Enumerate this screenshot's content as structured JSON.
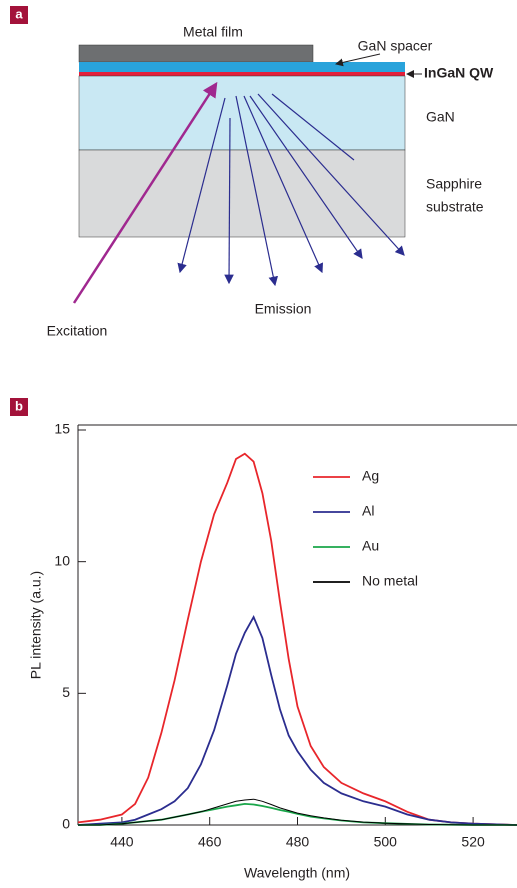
{
  "diagram": {
    "panel": "a",
    "metal": "Metal film",
    "spacer": "GaN spacer",
    "qw": "InGaN QW",
    "gan": "GaN",
    "sapphire": [
      "Sapphire",
      "substrate"
    ],
    "emission": "Emission",
    "excitation": "Excitation"
  },
  "chart_data": {
    "type": "line",
    "panel": "b",
    "xlabel": "Wavelength (nm)",
    "ylabel": "PL intensity (a.u.)",
    "xlim": [
      430,
      530
    ],
    "xticks": [
      440,
      460,
      480,
      500,
      520
    ],
    "ylim": [
      0,
      15
    ],
    "yticks": [
      0,
      5,
      10,
      15
    ],
    "x": [
      430,
      435,
      440,
      443,
      446,
      449,
      452,
      455,
      458,
      461,
      464,
      466,
      468,
      470,
      472,
      474,
      476,
      478,
      480,
      483,
      486,
      490,
      495,
      500,
      505,
      510,
      515,
      520,
      530
    ],
    "series": [
      {
        "name": "Ag",
        "color": "#e8262b",
        "values": [
          0.1,
          0.2,
          0.4,
          0.8,
          1.8,
          3.5,
          5.5,
          7.8,
          10,
          11.8,
          13,
          13.9,
          14.1,
          13.8,
          12.6,
          10.8,
          8.5,
          6.3,
          4.5,
          3,
          2.2,
          1.6,
          1.2,
          0.9,
          0.5,
          0.2,
          0.1,
          0.05,
          0
        ]
      },
      {
        "name": "Al",
        "color": "#2b2d8f",
        "values": [
          0,
          0.05,
          0.1,
          0.2,
          0.4,
          0.6,
          0.9,
          1.4,
          2.3,
          3.6,
          5.3,
          6.5,
          7.3,
          7.9,
          7.1,
          5.7,
          4.4,
          3.4,
          2.8,
          2.1,
          1.6,
          1.2,
          0.9,
          0.7,
          0.4,
          0.2,
          0.1,
          0.05,
          0
        ]
      },
      {
        "name": "Au",
        "color": "#1aa64a",
        "values": [
          0,
          0,
          0.05,
          0.1,
          0.15,
          0.2,
          0.3,
          0.4,
          0.5,
          0.6,
          0.7,
          0.75,
          0.8,
          0.78,
          0.72,
          0.65,
          0.57,
          0.5,
          0.42,
          0.32,
          0.25,
          0.17,
          0.1,
          0.07,
          0.04,
          0.02,
          0.01,
          0,
          0
        ]
      },
      {
        "name": "No metal",
        "color": "#000000",
        "values": [
          0,
          0,
          0.05,
          0.1,
          0.15,
          0.2,
          0.3,
          0.4,
          0.5,
          0.65,
          0.8,
          0.9,
          0.95,
          0.98,
          0.9,
          0.78,
          0.65,
          0.55,
          0.45,
          0.35,
          0.27,
          0.18,
          0.11,
          0.07,
          0.04,
          0.02,
          0.01,
          0,
          0
        ]
      }
    ]
  }
}
